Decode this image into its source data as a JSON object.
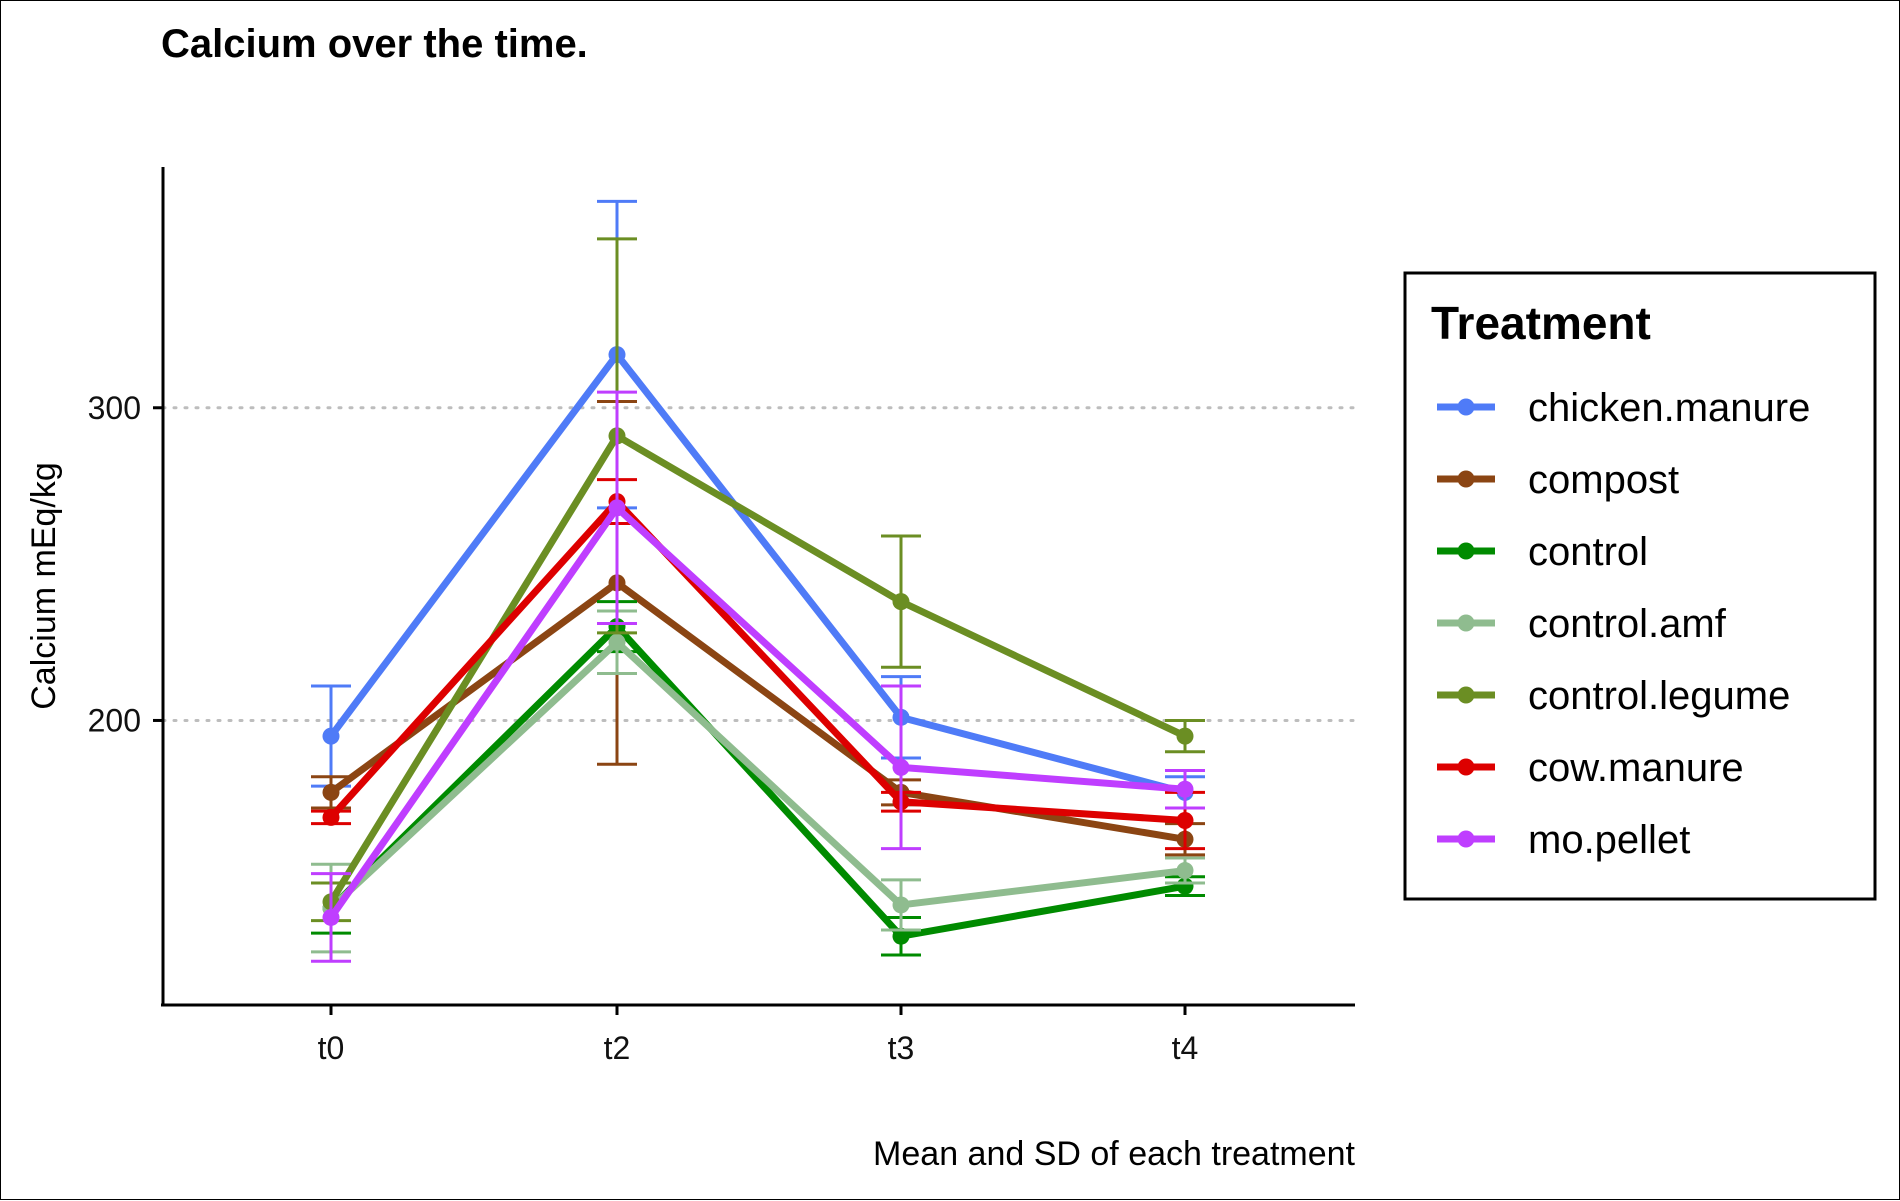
{
  "chart_data": {
    "type": "line",
    "title": "Calcium over the time.",
    "xlabel": "Mean and SD of each treatment",
    "ylabel": "Calcium mEq/kg",
    "categories": [
      "t0",
      "t2",
      "t3",
      "t4"
    ],
    "ylim": [
      109,
      377
    ],
    "yticks": [
      200,
      300
    ],
    "grid": "horizontal dotted at y ticks",
    "legend_title": "Treatment",
    "legend_position": "right",
    "series": [
      {
        "name": "chicken.manure",
        "color": "#4f7bf7",
        "values": [
          195,
          317,
          201,
          177
        ],
        "sd": [
          16,
          49,
          13,
          5
        ]
      },
      {
        "name": "compost",
        "color": "#8b4513",
        "values": [
          177,
          244,
          177,
          162
        ],
        "sd": [
          5,
          58,
          4,
          5
        ]
      },
      {
        "name": "control",
        "color": "#008b00",
        "values": [
          140,
          230,
          131,
          147
        ],
        "sd": [
          8,
          8,
          6,
          3
        ]
      },
      {
        "name": "control.amf",
        "color": "#8fbc8f",
        "values": [
          140,
          225,
          141,
          152
        ],
        "sd": [
          14,
          10,
          8,
          4
        ]
      },
      {
        "name": "control.legume",
        "color": "#6b8e23",
        "values": [
          142,
          291,
          238,
          195
        ],
        "sd": [
          6,
          63,
          21,
          5
        ]
      },
      {
        "name": "cow.manure",
        "color": "#dd0000",
        "values": [
          169,
          270,
          174,
          168
        ],
        "sd": [
          2,
          7,
          3,
          9
        ]
      },
      {
        "name": "mo.pellet",
        "color": "#bf3eff",
        "values": [
          137,
          268,
          185,
          178
        ],
        "sd": [
          14,
          37,
          26,
          6
        ]
      }
    ]
  }
}
